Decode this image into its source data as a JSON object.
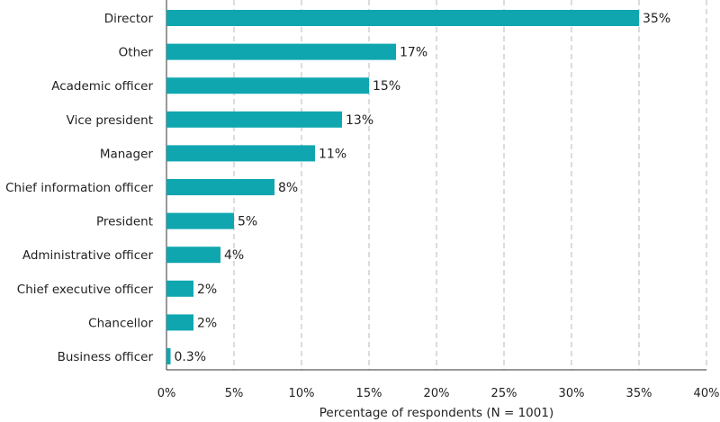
{
  "chart_data": {
    "type": "bar",
    "orientation": "horizontal",
    "categories": [
      "Director",
      "Other",
      "Academic officer",
      "Vice president",
      "Manager",
      "Chief information officer",
      "President",
      "Administrative officer",
      "Chief executive officer",
      "Chancellor",
      "Business officer"
    ],
    "values": [
      35,
      17,
      15,
      13,
      11,
      8,
      5,
      4,
      2,
      2,
      0.3
    ],
    "value_labels": [
      "35%",
      "17%",
      "15%",
      "13%",
      "11%",
      "8%",
      "5%",
      "4%",
      "2%",
      "2%",
      "0.3%"
    ],
    "xlabel": "Percentage of respondents (N = 1001)",
    "ylabel": "",
    "xlim": [
      0,
      40
    ],
    "ticks": [
      0,
      5,
      10,
      15,
      20,
      25,
      30,
      35,
      40
    ],
    "tick_labels": [
      "0%",
      "5%",
      "10%",
      "15%",
      "20%",
      "25%",
      "30%",
      "35%",
      "40%"
    ],
    "grid": "vertical dashed",
    "legend": "none",
    "bar_color": "#0fa6b0"
  }
}
